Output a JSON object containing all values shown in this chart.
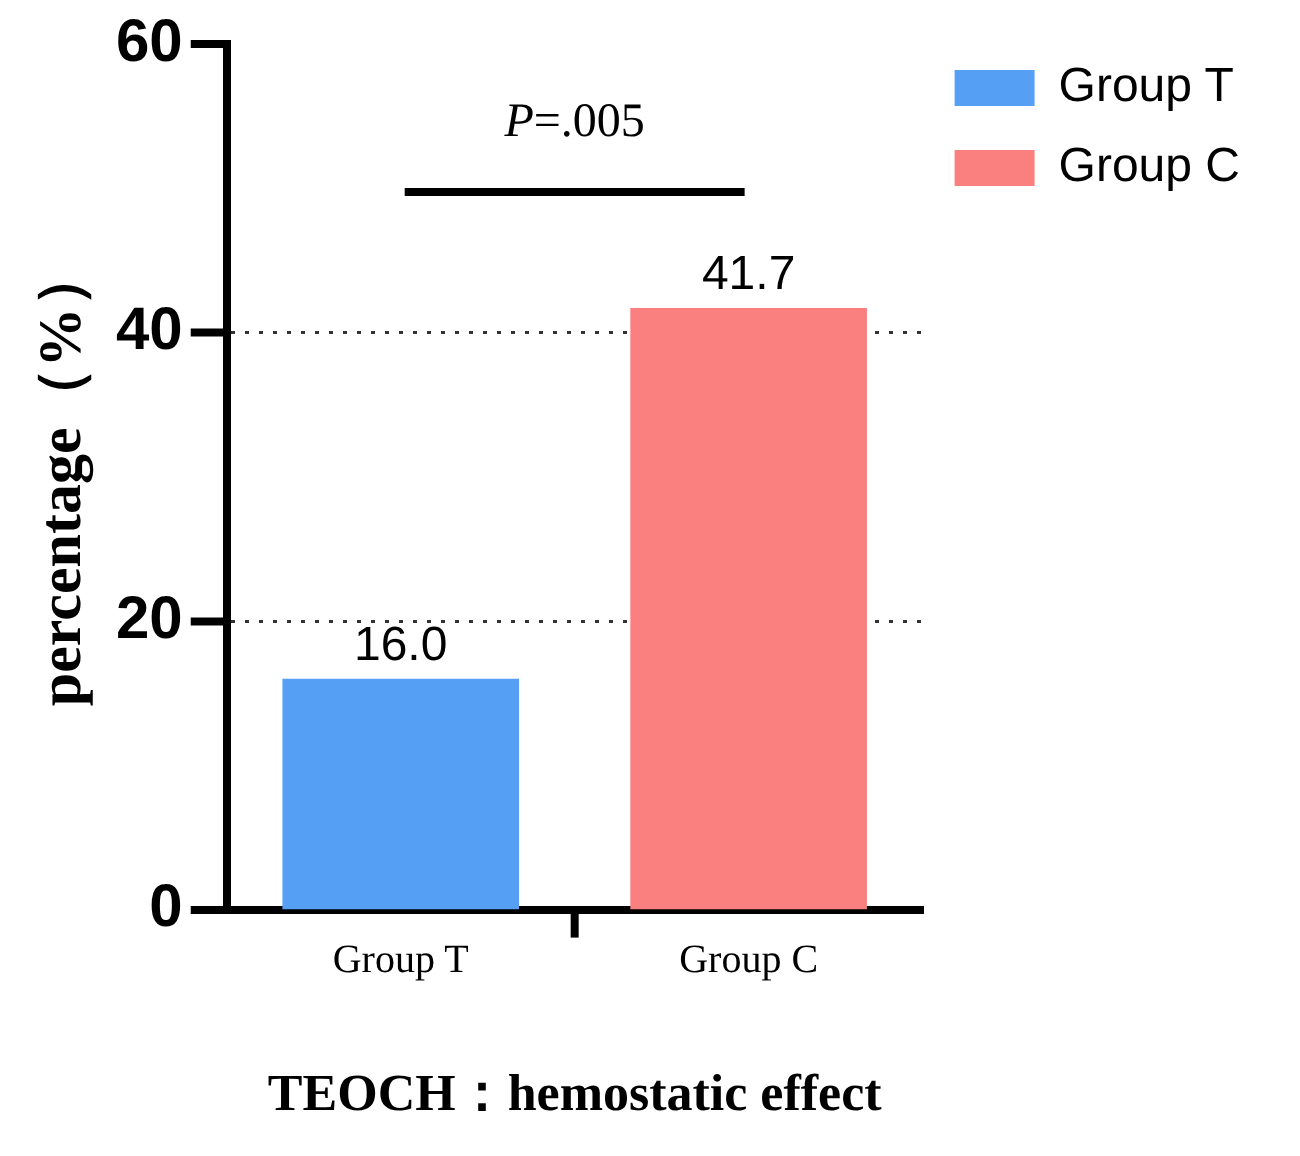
{
  "chart_data": {
    "type": "bar",
    "xlabel": "TEOCH：hemostatic effect",
    "ylabel": "percentage（%）",
    "categories": [
      "Group T",
      "Group C"
    ],
    "series": [
      {
        "name": "Group T",
        "color": "#559ff5",
        "values": [
          16.0,
          null
        ],
        "value_labels": [
          "16.0",
          null
        ]
      },
      {
        "name": "Group C",
        "color": "#fa7f7f",
        "values": [
          null,
          41.7
        ],
        "value_labels": [
          null,
          "41.7"
        ]
      }
    ],
    "ylim": [
      0,
      60
    ],
    "yticks": [
      0,
      20,
      40,
      60
    ],
    "grid": "y",
    "legend": "top right",
    "annotations": [
      "P=.005"
    ]
  }
}
